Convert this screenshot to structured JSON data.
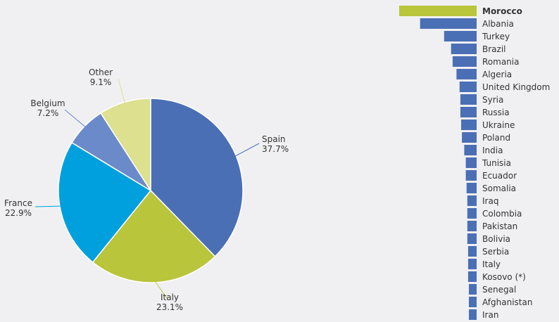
{
  "chart_data": [
    {
      "type": "pie",
      "slices": [
        {
          "label": "Spain",
          "value": 37.7,
          "value_label": "37.7%",
          "color": "#4a6fb5"
        },
        {
          "label": "Italy",
          "value": 23.1,
          "value_label": "23.1%",
          "color": "#b9c53a"
        },
        {
          "label": "France",
          "value": 22.9,
          "value_label": "22.9%",
          "color": "#00a0de"
        },
        {
          "label": "Belgium",
          "value": 7.2,
          "value_label": "7.2%",
          "color": "#6b8ac9"
        },
        {
          "label": "Other",
          "value": 9.1,
          "value_label": "9.1%",
          "color": "#dce08f"
        }
      ]
    },
    {
      "type": "bar",
      "orientation": "horizontal",
      "highlight_color": "#b9c53a",
      "bar_color": "#4a6fb5",
      "highlighted_category": "Morocco",
      "categories": [
        "Morocco",
        "Albania",
        "Turkey",
        "Brazil",
        "Romania",
        "Algeria",
        "United Kingdom",
        "Syria",
        "Russia",
        "Ukraine",
        "Poland",
        "India",
        "Tunisia",
        "Ecuador",
        "Somalia",
        "Iraq",
        "Colombia",
        "Pakistan",
        "Bolivia",
        "Serbia",
        "Italy",
        "Kosovo (*)",
        "Senegal",
        "Afghanistan",
        "Iran"
      ],
      "values": [
        100,
        73,
        42,
        33,
        31,
        26,
        22,
        21,
        21,
        20,
        19,
        16,
        14,
        14,
        13,
        12,
        12,
        12,
        12,
        11,
        11,
        11,
        10,
        10,
        10
      ]
    }
  ]
}
